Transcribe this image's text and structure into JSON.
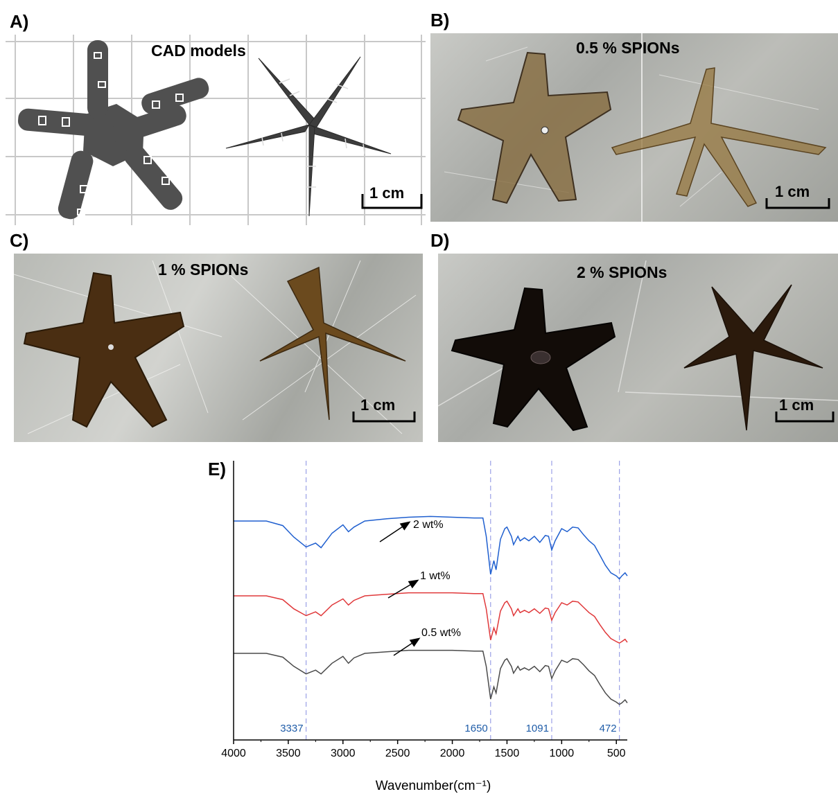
{
  "panels": {
    "a": {
      "label": "A)",
      "title": "CAD models",
      "scale": "1 cm"
    },
    "b": {
      "label": "B)",
      "title": "0.5 % SPIONs",
      "scale": "1 cm"
    },
    "c": {
      "label": "C)",
      "title": "1 % SPIONs",
      "scale": "1 cm"
    },
    "d": {
      "label": "D)",
      "title": "2 % SPIONs",
      "scale": "1 cm"
    },
    "e": {
      "label": "E)"
    }
  },
  "colors": {
    "series_2": "#1f5fcf",
    "series_1": "#e0383a",
    "series_05": "#4a4a4a",
    "peak_lines": "#9aa0e6",
    "peak_labels": "#1f5ca8"
  },
  "chart_data": {
    "type": "line",
    "xlabel": "Wavenumber(cm⁻¹)",
    "ylabel": "",
    "xlim": [
      4000,
      400
    ],
    "x_reversed": true,
    "xticks": [
      4000,
      3500,
      3000,
      2500,
      2000,
      1500,
      1000,
      500
    ],
    "xtick_labels": [
      "4000",
      "3500",
      "3000",
      "2500",
      "2000",
      "1500",
      "1000",
      "500"
    ],
    "peak_lines": [
      3337,
      1650,
      1091,
      472
    ],
    "peak_labels": [
      "3337",
      "1650",
      "1091",
      "472"
    ],
    "annotations": [
      "2 wt%",
      "1 wt%",
      "0.5 wt%"
    ],
    "series": [
      {
        "name": "2 wt%",
        "x": [
          4000,
          3700,
          3550,
          3450,
          3337,
          3250,
          3200,
          3100,
          3000,
          2950,
          2900,
          2800,
          2600,
          2400,
          2200,
          2000,
          1800,
          1720,
          1690,
          1650,
          1620,
          1600,
          1560,
          1520,
          1500,
          1460,
          1440,
          1400,
          1380,
          1340,
          1300,
          1250,
          1200,
          1150,
          1120,
          1091,
          1060,
          1000,
          950,
          900,
          850,
          800,
          750,
          700,
          650,
          600,
          550,
          500,
          472,
          450,
          420,
          400
        ],
        "y": [
          0.0,
          0.0,
          -0.6,
          -2.1,
          -3.4,
          -2.9,
          -3.5,
          -1.6,
          -0.5,
          -1.4,
          -0.8,
          0.0,
          0.3,
          0.5,
          0.6,
          0.5,
          0.4,
          0.4,
          -2.0,
          -7.0,
          -5.2,
          -6.4,
          -2.4,
          -1.0,
          -0.8,
          -2.0,
          -3.1,
          -2.0,
          -2.6,
          -2.2,
          -2.6,
          -2.0,
          -2.8,
          -1.9,
          -2.0,
          -3.8,
          -2.6,
          -1.0,
          -1.4,
          -0.8,
          -0.9,
          -1.8,
          -2.6,
          -3.2,
          -4.5,
          -5.8,
          -6.8,
          -7.2,
          -7.6,
          -7.2,
          -6.8,
          -7.2
        ]
      },
      {
        "name": "1 wt%",
        "x": [
          4000,
          3700,
          3550,
          3450,
          3337,
          3250,
          3200,
          3100,
          3000,
          2950,
          2900,
          2800,
          2600,
          2400,
          2200,
          2000,
          1800,
          1720,
          1690,
          1650,
          1620,
          1600,
          1560,
          1520,
          1500,
          1460,
          1440,
          1400,
          1380,
          1340,
          1300,
          1250,
          1200,
          1150,
          1120,
          1091,
          1060,
          1000,
          950,
          900,
          850,
          800,
          750,
          700,
          650,
          600,
          550,
          500,
          472,
          450,
          420,
          400
        ],
        "y": [
          0.0,
          0.0,
          -0.5,
          -1.7,
          -2.6,
          -2.1,
          -2.6,
          -1.2,
          -0.4,
          -1.2,
          -0.6,
          0.0,
          0.2,
          0.4,
          0.4,
          0.4,
          0.3,
          0.3,
          -1.7,
          -5.8,
          -4.2,
          -5.0,
          -2.0,
          -0.9,
          -0.7,
          -1.7,
          -2.6,
          -1.7,
          -2.2,
          -1.9,
          -2.2,
          -1.7,
          -2.3,
          -1.6,
          -1.7,
          -3.2,
          -2.2,
          -0.9,
          -1.2,
          -0.7,
          -0.8,
          -1.5,
          -2.2,
          -2.7,
          -3.8,
          -4.8,
          -5.6,
          -6.0,
          -6.2,
          -6.0,
          -5.7,
          -6.1
        ]
      },
      {
        "name": "0.5 wt%",
        "x": [
          4000,
          3700,
          3550,
          3450,
          3337,
          3250,
          3200,
          3100,
          3000,
          2950,
          2900,
          2800,
          2600,
          2400,
          2200,
          2000,
          1800,
          1720,
          1690,
          1650,
          1620,
          1600,
          1560,
          1520,
          1500,
          1460,
          1440,
          1400,
          1380,
          1340,
          1300,
          1250,
          1200,
          1150,
          1120,
          1091,
          1060,
          1000,
          950,
          900,
          850,
          800,
          750,
          700,
          650,
          600,
          550,
          500,
          472,
          450,
          420,
          400
        ],
        "y": [
          0.0,
          0.0,
          -0.5,
          -1.7,
          -2.7,
          -2.2,
          -2.7,
          -1.3,
          -0.4,
          -1.3,
          -0.6,
          0.0,
          0.2,
          0.4,
          0.4,
          0.4,
          0.3,
          0.3,
          -1.7,
          -6.0,
          -4.4,
          -5.2,
          -2.0,
          -0.9,
          -0.7,
          -1.7,
          -2.6,
          -1.7,
          -2.2,
          -1.9,
          -2.2,
          -1.7,
          -2.4,
          -1.6,
          -1.7,
          -3.3,
          -2.3,
          -0.9,
          -1.2,
          -0.7,
          -0.8,
          -1.5,
          -2.3,
          -2.9,
          -4.1,
          -5.2,
          -6.0,
          -6.4,
          -6.7,
          -6.5,
          -6.1,
          -6.5
        ]
      }
    ]
  }
}
